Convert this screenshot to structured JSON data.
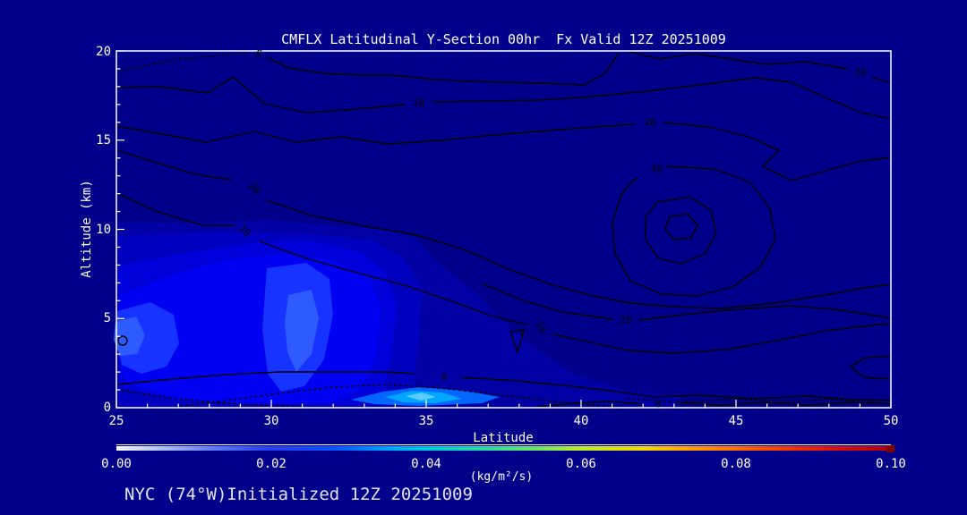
{
  "window": {
    "background_color": "#00008B",
    "frame_color": "#FFFFFF",
    "contour_line_color": "#000000"
  },
  "title": "CMFLX Latitudinal Y-Section 00hr  Fx Valid 12Z 20251009",
  "footer": "NYC (74°W)Initialized 12Z 20251009",
  "axes": {
    "x": {
      "label": "Latitude",
      "tick_labels": [
        "25",
        "30",
        "35",
        "40",
        "45",
        "50"
      ]
    },
    "y": {
      "label": "Altitude (km)",
      "tick_labels": [
        "0",
        "5",
        "10",
        "15",
        "20"
      ]
    }
  },
  "colorbar": {
    "tick_labels": [
      "0.00",
      "0.02",
      "0.04",
      "0.06",
      "0.08",
      "0.10"
    ],
    "units": "(kg/m²/s)"
  },
  "contour_labels": [
    "0",
    "10",
    "20",
    "30",
    "10",
    "20",
    "10",
    "10",
    "20",
    "0",
    "0"
  ],
  "chart_data": {
    "type": "heatmap",
    "title": "CMFLX Latitudinal Y-Section 00hr  Fx Valid 12Z 20251009",
    "variable": "CMFLX",
    "units": "kg/m²/s",
    "xlabel": "Latitude",
    "ylabel": "Altitude (km)",
    "xlim": [
      25,
      50
    ],
    "ylim": [
      0,
      20
    ],
    "x_ticks": [
      25,
      30,
      35,
      40,
      45,
      50
    ],
    "y_ticks": [
      0,
      5,
      10,
      15,
      20
    ],
    "grid": false,
    "legend_position": "colorbar-bottom",
    "colorbar": {
      "min": 0.0,
      "max": 0.1,
      "ticks": [
        0.0,
        0.02,
        0.04,
        0.06,
        0.08,
        0.1
      ]
    },
    "line_contours": {
      "labeled_levels": [
        0,
        10,
        20,
        30
      ],
      "negative_style": "dotted",
      "positive_style": "solid black",
      "closed_maximum": {
        "lat": 43,
        "alt_km": 10,
        "level_inside": ">30"
      }
    },
    "filled_contours": {
      "value_range_shaded": [
        0.0,
        0.03
      ],
      "main_shaded_region": "blue shading between lat 25-37 below ~10 km altitude",
      "brightest_cell": {
        "lat": 34.8,
        "alt_km": 0.5,
        "approx_value": 0.03
      },
      "secondary_bright_cells": [
        {
          "lat": 25.3,
          "alt_km": 4.0,
          "approx_value": 0.02
        },
        {
          "lat": 30.8,
          "alt_km": 4.5,
          "approx_value": 0.02
        }
      ]
    },
    "forecast_hour": "00hr",
    "valid_time": "12Z 20251009",
    "initialized": "12Z 20251009",
    "station": "NYC (74°W)"
  }
}
